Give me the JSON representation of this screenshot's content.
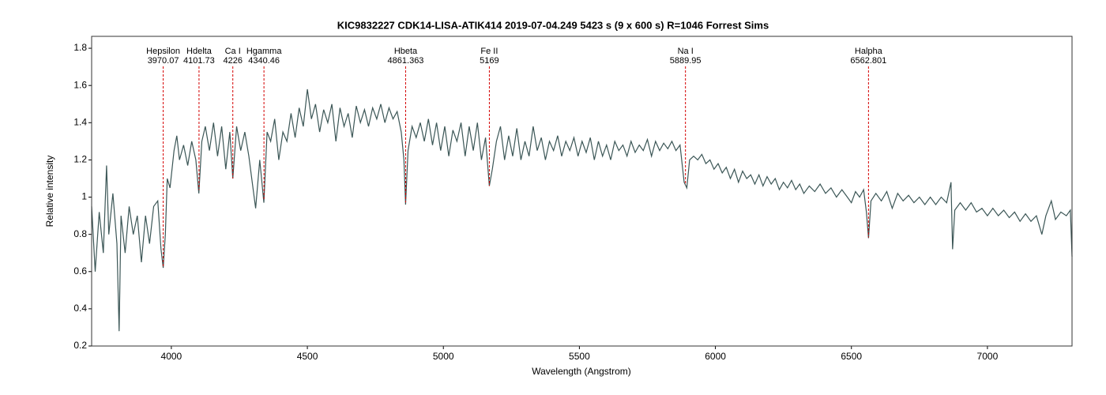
{
  "chart_data": {
    "type": "line",
    "title": "KIC9832227  CDK14-LISA-ATIK414 2019-07-04.249  5423 s (9 x 600 s)  R=1046  Forrest Sims",
    "x_label": "Wavelength (Angstrom)",
    "y_label": "Relative intensity",
    "xlim": [
      3707,
      7311
    ],
    "ylim": [
      0.2,
      1.864
    ],
    "xticks": [
      4000,
      4500,
      5000,
      5500,
      6000,
      6500,
      7000
    ],
    "yticks": [
      0.2,
      0.4,
      0.6,
      0.8,
      1,
      1.2,
      1.4,
      1.6,
      1.8
    ],
    "annotations": [
      {
        "label": "Hepsilon",
        "value": 3970.07
      },
      {
        "label": "Hdelta",
        "value": 4101.73
      },
      {
        "label": "Ca I",
        "value": 4226
      },
      {
        "label": "Hgamma",
        "value": 4340.46
      },
      {
        "label": "Hbeta",
        "value": 4861.363
      },
      {
        "label": "Fe II",
        "value": 5169
      },
      {
        "label": "Na I",
        "value": 5889.95
      },
      {
        "label": "Halpha",
        "value": 6562.801
      }
    ],
    "annotation_color": "#d40000",
    "series": [
      {
        "color": "#3b5656",
        "x": [
          3707,
          3720,
          3735,
          3750,
          3762,
          3770,
          3785,
          3800,
          3808,
          3815,
          3830,
          3845,
          3860,
          3875,
          3890,
          3905,
          3920,
          3935,
          3950,
          3962,
          3970,
          3978,
          3985,
          3995,
          4010,
          4020,
          4030,
          4045,
          4060,
          4075,
          4090,
          4101,
          4112,
          4125,
          4140,
          4155,
          4170,
          4185,
          4200,
          4215,
          4226,
          4240,
          4255,
          4270,
          4285,
          4300,
          4310,
          4325,
          4340,
          4352,
          4365,
          4380,
          4395,
          4410,
          4425,
          4440,
          4455,
          4470,
          4485,
          4500,
          4515,
          4530,
          4545,
          4560,
          4575,
          4590,
          4605,
          4620,
          4635,
          4650,
          4665,
          4680,
          4695,
          4710,
          4725,
          4740,
          4755,
          4770,
          4785,
          4800,
          4815,
          4830,
          4845,
          4855,
          4861,
          4870,
          4885,
          4900,
          4915,
          4930,
          4945,
          4960,
          4975,
          4990,
          5005,
          5020,
          5035,
          5050,
          5065,
          5080,
          5095,
          5110,
          5125,
          5140,
          5155,
          5169,
          5180,
          5195,
          5210,
          5225,
          5240,
          5255,
          5270,
          5285,
          5300,
          5315,
          5330,
          5345,
          5360,
          5375,
          5390,
          5405,
          5420,
          5435,
          5450,
          5465,
          5480,
          5495,
          5510,
          5525,
          5540,
          5555,
          5570,
          5585,
          5600,
          5615,
          5630,
          5645,
          5660,
          5675,
          5690,
          5705,
          5720,
          5735,
          5750,
          5765,
          5780,
          5795,
          5810,
          5825,
          5840,
          5855,
          5870,
          5885,
          5895,
          5905,
          5920,
          5935,
          5950,
          5965,
          5980,
          5995,
          6010,
          6025,
          6040,
          6055,
          6070,
          6085,
          6100,
          6115,
          6130,
          6145,
          6160,
          6175,
          6190,
          6205,
          6220,
          6235,
          6250,
          6265,
          6280,
          6295,
          6310,
          6325,
          6345,
          6365,
          6385,
          6405,
          6425,
          6445,
          6465,
          6485,
          6500,
          6515,
          6530,
          6545,
          6555,
          6563,
          6572,
          6590,
          6610,
          6630,
          6650,
          6670,
          6690,
          6710,
          6730,
          6750,
          6770,
          6790,
          6810,
          6830,
          6850,
          6866,
          6872,
          6880,
          6900,
          6920,
          6940,
          6960,
          6980,
          7000,
          7020,
          7040,
          7060,
          7080,
          7100,
          7120,
          7140,
          7160,
          7180,
          7200,
          7215,
          7235,
          7250,
          7270,
          7290,
          7305,
          7311
        ],
        "values": [
          0.95,
          0.6,
          0.92,
          0.7,
          1.17,
          0.8,
          1.02,
          0.75,
          0.28,
          0.9,
          0.7,
          0.95,
          0.8,
          0.9,
          0.65,
          0.9,
          0.75,
          0.95,
          0.98,
          0.72,
          0.62,
          0.8,
          1.1,
          1.05,
          1.25,
          1.33,
          1.2,
          1.28,
          1.17,
          1.3,
          1.2,
          1.02,
          1.3,
          1.38,
          1.25,
          1.4,
          1.22,
          1.38,
          1.15,
          1.35,
          1.1,
          1.38,
          1.25,
          1.35,
          1.22,
          1.05,
          0.94,
          1.2,
          0.97,
          1.35,
          1.3,
          1.42,
          1.2,
          1.35,
          1.3,
          1.45,
          1.32,
          1.48,
          1.38,
          1.58,
          1.42,
          1.5,
          1.35,
          1.47,
          1.4,
          1.5,
          1.3,
          1.48,
          1.38,
          1.45,
          1.32,
          1.49,
          1.4,
          1.47,
          1.38,
          1.48,
          1.42,
          1.5,
          1.4,
          1.48,
          1.42,
          1.46,
          1.35,
          1.2,
          0.96,
          1.25,
          1.38,
          1.32,
          1.4,
          1.3,
          1.42,
          1.28,
          1.4,
          1.25,
          1.38,
          1.22,
          1.36,
          1.3,
          1.4,
          1.22,
          1.38,
          1.25,
          1.4,
          1.2,
          1.32,
          1.06,
          1.15,
          1.3,
          1.38,
          1.2,
          1.33,
          1.22,
          1.37,
          1.2,
          1.3,
          1.22,
          1.38,
          1.25,
          1.32,
          1.2,
          1.3,
          1.25,
          1.33,
          1.22,
          1.3,
          1.25,
          1.32,
          1.22,
          1.3,
          1.24,
          1.32,
          1.2,
          1.3,
          1.22,
          1.28,
          1.2,
          1.3,
          1.25,
          1.28,
          1.22,
          1.3,
          1.24,
          1.28,
          1.25,
          1.31,
          1.22,
          1.3,
          1.25,
          1.29,
          1.26,
          1.3,
          1.25,
          1.28,
          1.08,
          1.05,
          1.2,
          1.22,
          1.2,
          1.23,
          1.18,
          1.2,
          1.15,
          1.18,
          1.13,
          1.16,
          1.1,
          1.15,
          1.08,
          1.14,
          1.1,
          1.12,
          1.07,
          1.12,
          1.06,
          1.11,
          1.07,
          1.1,
          1.04,
          1.08,
          1.05,
          1.09,
          1.04,
          1.07,
          1.02,
          1.06,
          1.03,
          1.07,
          1.02,
          1.05,
          1.0,
          1.04,
          1.0,
          0.97,
          1.03,
          1.0,
          1.04,
          0.92,
          0.78,
          0.98,
          1.02,
          0.98,
          1.03,
          0.94,
          1.02,
          0.98,
          1.01,
          0.97,
          1.0,
          0.96,
          1.0,
          0.96,
          1.0,
          0.97,
          1.08,
          0.72,
          0.93,
          0.97,
          0.93,
          0.97,
          0.92,
          0.94,
          0.9,
          0.94,
          0.9,
          0.93,
          0.89,
          0.92,
          0.87,
          0.91,
          0.87,
          0.9,
          0.8,
          0.9,
          0.98,
          0.88,
          0.92,
          0.9,
          0.93,
          0.68
        ]
      }
    ]
  }
}
